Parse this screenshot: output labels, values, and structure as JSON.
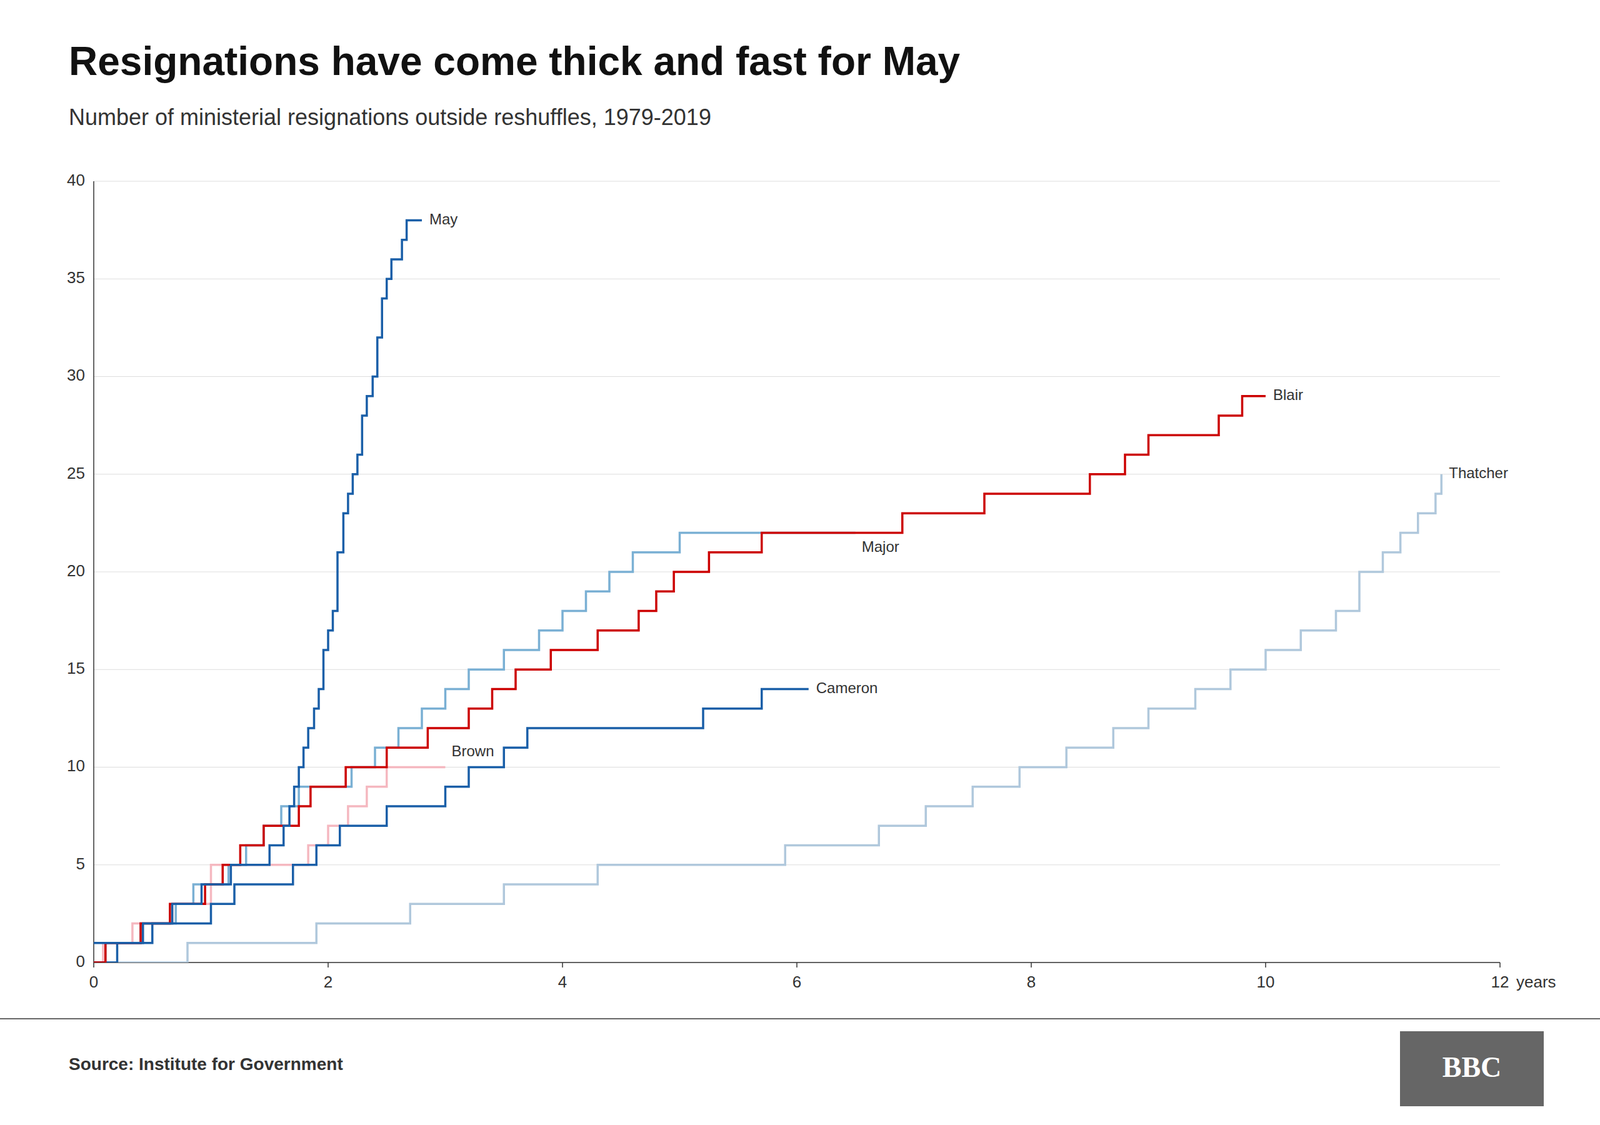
{
  "chart_data": {
    "type": "step",
    "title": "Resignations have come thick and fast for May",
    "subtitle": "Number of ministerial resignations outside reshuffles, 1979-2019",
    "source": "Source: Institute for Government",
    "annotations": [
      "BBC"
    ],
    "xlabel": "years",
    "xlim": [
      0,
      12
    ],
    "ylim": [
      0,
      40
    ],
    "xticks": [
      0,
      2,
      4,
      6,
      8,
      10,
      12
    ],
    "yticks": [
      0,
      5,
      10,
      15,
      20,
      25,
      30,
      35,
      40
    ],
    "grid": true,
    "series": [
      {
        "name": "Thatcher",
        "color": "#b0c8dc",
        "x": [
          0,
          0.4,
          0.8,
          1.1,
          1.5,
          1.9,
          2.3,
          2.7,
          3.1,
          3.5,
          3.9,
          4.3,
          4.7,
          5.1,
          5.5,
          5.9,
          6.3,
          6.7,
          7.1,
          7.5,
          7.9,
          8.3,
          8.7,
          9.0,
          9.4,
          9.7,
          10.0,
          10.3,
          10.6,
          10.8,
          11.0,
          11.15,
          11.3,
          11.45,
          11.5
        ],
        "values": [
          0,
          0,
          1,
          1,
          1,
          2,
          2,
          3,
          3,
          4,
          4,
          5,
          5,
          5,
          5,
          6,
          6,
          7,
          8,
          9,
          10,
          11,
          12,
          13,
          14,
          15,
          16,
          17,
          18,
          20,
          21,
          22,
          23,
          24,
          25
        ]
      },
      {
        "name": "Brown",
        "color": "#f5b8c0",
        "x": [
          0,
          0.08,
          0.17,
          0.33,
          0.5,
          0.67,
          0.83,
          1.0,
          1.17,
          1.33,
          1.5,
          1.67,
          1.83,
          2.0,
          2.17,
          2.33,
          2.5,
          2.67,
          2.83,
          3.0
        ],
        "values": [
          0,
          1,
          1,
          2,
          2,
          3,
          3,
          5,
          5,
          5,
          5,
          5,
          6,
          7,
          8,
          9,
          10,
          10,
          10,
          10
        ]
      },
      {
        "name": "Major",
        "color": "#7ab0d4",
        "x": [
          0,
          0.1,
          0.25,
          0.4,
          0.55,
          0.7,
          0.85,
          1.0,
          1.15,
          1.3,
          1.45,
          1.6,
          1.75,
          2.0,
          2.2,
          2.4,
          2.6,
          2.8,
          3.0,
          3.2,
          3.5,
          3.8,
          4.0,
          4.2,
          4.4,
          4.6,
          4.8,
          5.0,
          5.2,
          5.5,
          5.8,
          6.0,
          6.5
        ],
        "values": [
          0,
          1,
          1,
          2,
          2,
          3,
          4,
          4,
          5,
          6,
          7,
          8,
          9,
          9,
          10,
          11,
          12,
          13,
          14,
          15,
          16,
          17,
          18,
          19,
          20,
          21,
          21,
          22,
          22,
          22,
          22,
          22,
          22
        ]
      },
      {
        "name": "Cameron",
        "color": "#1a5fa8",
        "x": [
          0,
          0.2,
          0.5,
          0.8,
          1.0,
          1.2,
          1.5,
          1.7,
          1.9,
          2.1,
          2.3,
          2.5,
          2.7,
          3.0,
          3.2,
          3.5,
          3.7,
          4.0,
          4.2,
          4.5,
          4.7,
          5.0,
          5.2,
          5.5,
          5.7,
          6.0,
          6.1
        ],
        "values": [
          0,
          1,
          2,
          2,
          3,
          4,
          4,
          5,
          6,
          7,
          7,
          8,
          8,
          9,
          10,
          11,
          12,
          12,
          12,
          12,
          12,
          12,
          13,
          13,
          14,
          14,
          14
        ]
      },
      {
        "name": "Blair",
        "color": "#cc0000",
        "x": [
          0,
          0.1,
          0.25,
          0.4,
          0.55,
          0.65,
          0.8,
          0.95,
          1.1,
          1.25,
          1.45,
          1.6,
          1.75,
          1.85,
          2.0,
          2.15,
          2.35,
          2.5,
          2.7,
          2.85,
          3.0,
          3.2,
          3.4,
          3.6,
          3.75,
          3.9,
          4.1,
          4.3,
          4.5,
          4.65,
          4.8,
          4.95,
          5.1,
          5.25,
          5.4,
          5.55,
          5.7,
          5.85,
          6.0,
          6.2,
          6.35,
          6.7,
          6.9,
          7.2,
          7.6,
          7.9,
          8.2,
          8.5,
          8.8,
          9.0,
          9.3,
          9.6,
          9.8,
          10.0
        ],
        "values": [
          0,
          1,
          1,
          2,
          2,
          3,
          3,
          4,
          5,
          6,
          7,
          7,
          8,
          9,
          9,
          10,
          10,
          11,
          11,
          12,
          12,
          13,
          14,
          15,
          15,
          16,
          16,
          17,
          17,
          18,
          19,
          20,
          20,
          21,
          21,
          21,
          22,
          22,
          22,
          22,
          22,
          22,
          23,
          23,
          24,
          24,
          24,
          25,
          26,
          27,
          27,
          28,
          29,
          29
        ]
      },
      {
        "name": "May",
        "color": "#1a5fa8",
        "x": [
          0,
          0.08,
          0.17,
          0.25,
          0.33,
          0.42,
          0.5,
          0.58,
          0.67,
          0.75,
          0.83,
          0.92,
          1.0,
          1.08,
          1.17,
          1.25,
          1.33,
          1.42,
          1.5,
          1.58,
          1.62,
          1.67,
          1.71,
          1.75,
          1.79,
          1.83,
          1.88,
          1.92,
          1.96,
          2.0,
          2.04,
          2.08,
          2.13,
          2.17,
          2.21,
          2.25,
          2.29,
          2.33,
          2.38,
          2.42,
          2.46,
          2.5,
          2.54,
          2.58,
          2.63,
          2.67,
          2.71,
          2.75,
          2.8
        ],
        "values": [
          1,
          1,
          1,
          1,
          1,
          2,
          2,
          2,
          3,
          3,
          3,
          4,
          4,
          4,
          5,
          5,
          5,
          5,
          6,
          6,
          7,
          8,
          9,
          10,
          11,
          12,
          13,
          14,
          16,
          17,
          18,
          21,
          23,
          24,
          25,
          26,
          28,
          29,
          30,
          32,
          34,
          35,
          36,
          36,
          37,
          38,
          38,
          38,
          38
        ]
      }
    ]
  }
}
